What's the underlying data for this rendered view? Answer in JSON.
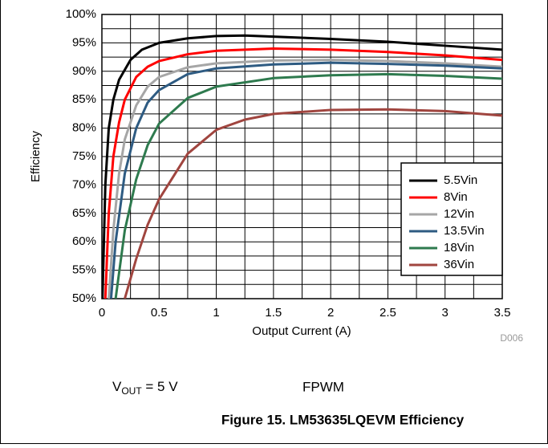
{
  "chart_data": {
    "type": "line",
    "xlabel": "Output Current (A)",
    "ylabel": "Efficiency",
    "xlim": [
      0,
      3.5
    ],
    "ylim": [
      50,
      100
    ],
    "xticks": [
      0,
      0.5,
      1,
      1.5,
      2,
      2.5,
      3,
      3.5
    ],
    "yticks": [
      {
        "value": 50,
        "label": "50%"
      },
      {
        "value": 55,
        "label": "55%"
      },
      {
        "value": 60,
        "label": "60%"
      },
      {
        "value": 65,
        "label": "65%"
      },
      {
        "value": 70,
        "label": "70%"
      },
      {
        "value": 75,
        "label": "75%"
      },
      {
        "value": 80,
        "label": "80%"
      },
      {
        "value": 85,
        "label": "85%"
      },
      {
        "value": 90,
        "label": "90%"
      },
      {
        "value": 95,
        "label": "95%"
      },
      {
        "value": 100,
        "label": "100%"
      }
    ],
    "grid": true,
    "minor_grid": true,
    "legend": "lower right",
    "code": "D006",
    "series": [
      {
        "name": "5.5Vin",
        "color": "#000000",
        "x": [
          0.005,
          0.03,
          0.06,
          0.1,
          0.15,
          0.25,
          0.35,
          0.5,
          0.75,
          1,
          1.25,
          1.5,
          2,
          2.5,
          3,
          3.5
        ],
        "values": [
          50,
          70,
          80,
          85,
          88.5,
          92,
          93.8,
          95,
          95.8,
          96.2,
          96.3,
          96.1,
          95.7,
          95.2,
          94.5,
          93.8
        ]
      },
      {
        "name": "8Vin",
        "color": "#ff0000",
        "x": [
          0.03,
          0.06,
          0.1,
          0.15,
          0.2,
          0.3,
          0.4,
          0.5,
          0.75,
          1,
          1.5,
          2,
          2.5,
          3,
          3.5
        ],
        "values": [
          50,
          65,
          75,
          81,
          85,
          89,
          90.8,
          91.8,
          93,
          93.6,
          94,
          93.8,
          93.4,
          92.8,
          92
        ]
      },
      {
        "name": "12Vin",
        "color": "#a6a6a6",
        "x": [
          0.06,
          0.1,
          0.15,
          0.2,
          0.3,
          0.4,
          0.5,
          0.75,
          1,
          1.5,
          2,
          2.5,
          3,
          3.5
        ],
        "values": [
          50,
          62,
          72,
          78,
          84,
          87.3,
          89,
          90.7,
          91.4,
          91.9,
          92,
          91.8,
          91.4,
          90.8
        ]
      },
      {
        "name": "13.5Vin",
        "color": "#2e5b82",
        "x": [
          0.08,
          0.12,
          0.2,
          0.3,
          0.4,
          0.5,
          0.75,
          1,
          1.5,
          2,
          2.5,
          3,
          3.5
        ],
        "values": [
          50,
          60,
          72,
          80,
          84.5,
          86.7,
          89.5,
          90.5,
          91.2,
          91.5,
          91.3,
          91,
          90.5
        ]
      },
      {
        "name": "18Vin",
        "color": "#2e7a4e",
        "x": [
          0.12,
          0.2,
          0.3,
          0.4,
          0.5,
          0.75,
          1,
          1.5,
          2,
          2.5,
          3,
          3.5
        ],
        "values": [
          50,
          62,
          71,
          77,
          80.8,
          85.3,
          87.3,
          88.8,
          89.3,
          89.5,
          89.2,
          88.7
        ]
      },
      {
        "name": "36Vin",
        "color": "#a0453f",
        "x": [
          0.2,
          0.3,
          0.4,
          0.5,
          0.75,
          1,
          1.25,
          1.5,
          2,
          2.5,
          3,
          3.5
        ],
        "values": [
          50,
          57,
          63,
          67.5,
          75.5,
          79.7,
          81.5,
          82.5,
          83.2,
          83.3,
          83,
          82.2
        ]
      }
    ]
  },
  "notes": {
    "vout_main": "V",
    "vout_sub": "OUT",
    "vout_rest": " = 5 V",
    "mode": "FPWM"
  },
  "caption": "Figure 15. LM53635LQEVM Efficiency"
}
